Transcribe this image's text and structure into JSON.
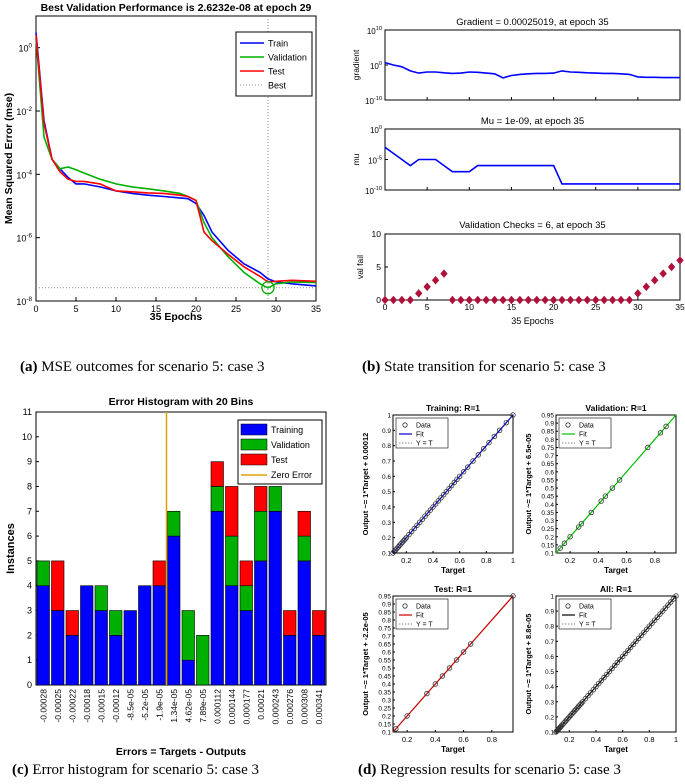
{
  "captions": [
    {
      "letter": "(a)",
      "text": "MSE outcomes for scenario 5: case 3"
    },
    {
      "letter": "(b)",
      "text": "State transition for scenario 5: case 3"
    },
    {
      "letter": "(c)",
      "text": "Error histogram for scenario 5: case 3"
    },
    {
      "letter": "(d)",
      "text": "Regression results for scenario 5: case 3"
    }
  ],
  "chart_data": [
    {
      "id": "performance",
      "type": "line",
      "title": "Best Validation Performance is 2.6232e-08 at epoch 29",
      "xlabel": "35 Epochs",
      "ylabel": "Mean Squared Error  (mse)",
      "y_scale": "log",
      "xlim": [
        0,
        35
      ],
      "ylim": [
        1e-08,
        10
      ],
      "x_ticks": [
        0,
        5,
        10,
        15,
        20,
        25,
        30,
        35
      ],
      "y_ticks": [
        {
          "value": 1,
          "label": "10",
          "exp": "0"
        },
        {
          "value": 0.01,
          "label": "10",
          "exp": "-2"
        },
        {
          "value": 0.0001,
          "label": "10",
          "exp": "-4"
        },
        {
          "value": 1e-06,
          "label": "10",
          "exp": "-6"
        },
        {
          "value": 1e-08,
          "label": "10",
          "exp": "-8"
        }
      ],
      "best_epoch": 29,
      "best_value": 2.6232e-08,
      "legend_position": "top-right",
      "series": [
        {
          "name": "Train",
          "color": "#0000ff",
          "x": [
            0,
            1,
            2,
            3,
            4,
            5,
            6,
            8,
            10,
            12,
            14,
            16,
            18,
            19,
            20,
            21,
            22,
            24,
            26,
            28,
            29,
            30,
            32,
            35
          ],
          "y": [
            3,
            0.005,
            0.0003,
            0.00015,
            8e-05,
            5e-05,
            5e-05,
            4e-05,
            3e-05,
            2.5e-05,
            2.2e-05,
            2e-05,
            1.8e-05,
            1.7e-05,
            1.2e-05,
            5e-06,
            1.5e-06,
            4e-07,
            1.5e-07,
            8e-08,
            5e-08,
            4e-08,
            3.5e-08,
            3e-08
          ]
        },
        {
          "name": "Validation",
          "color": "#00b000",
          "x": [
            0,
            1,
            2,
            3,
            4,
            5,
            6,
            8,
            10,
            12,
            14,
            16,
            18,
            19,
            20,
            21,
            22,
            24,
            26,
            28,
            29,
            30,
            32,
            35
          ],
          "y": [
            2,
            0.0015,
            0.0003,
            0.00015,
            0.00017,
            0.00014,
            0.00011,
            7e-05,
            5e-05,
            4e-05,
            3.5e-05,
            3e-05,
            2.5e-05,
            2e-05,
            1.5e-05,
            3e-06,
            1e-06,
            2.5e-07,
            8e-08,
            3.5e-08,
            2.6e-08,
            3.5e-08,
            4e-08,
            3.8e-08
          ]
        },
        {
          "name": "Test",
          "color": "#ff0000",
          "x": [
            0,
            1,
            2,
            3,
            4,
            5,
            6,
            8,
            10,
            12,
            14,
            16,
            18,
            19,
            20,
            21,
            22,
            24,
            26,
            28,
            29,
            30,
            32,
            35
          ],
          "y": [
            2.5,
            0.004,
            0.0003,
            0.00012,
            7e-05,
            6e-05,
            6e-05,
            5e-05,
            3e-05,
            2.8e-05,
            2.6e-05,
            2.5e-05,
            2.2e-05,
            2e-05,
            1.5e-05,
            1.5e-06,
            8e-07,
            3e-07,
            1.2e-07,
            6e-08,
            4e-08,
            4.2e-08,
            4.5e-08,
            4.2e-08
          ]
        },
        {
          "name": "Best",
          "color": "#999999",
          "style": "dotted"
        }
      ]
    },
    {
      "id": "gradient",
      "type": "line",
      "title": "Gradient = 0.00025019, at epoch 35",
      "ylabel": "gradient",
      "y_scale": "log",
      "xlim": [
        0,
        35
      ],
      "ylim": [
        1e-10,
        10000000000.0
      ],
      "y_ticks": [
        {
          "value": 10000000000.0,
          "label": "10",
          "exp": "10"
        },
        {
          "value": 1,
          "label": "10",
          "exp": "0"
        },
        {
          "value": 1e-10,
          "label": "10",
          "exp": "-10"
        }
      ],
      "x_ticks": [
        0,
        5,
        10,
        15,
        20,
        25,
        30,
        35
      ],
      "series": [
        {
          "color": "#0000ff",
          "x": [
            0,
            1,
            2,
            3,
            4,
            5,
            6,
            7,
            8,
            9,
            10,
            11,
            12,
            13,
            14,
            15,
            16,
            17,
            18,
            19,
            20,
            21,
            22,
            23,
            24,
            25,
            26,
            27,
            28,
            29,
            30,
            31,
            32,
            33,
            34,
            35
          ],
          "y": [
            5,
            1,
            0.3,
            0.02,
            0.005,
            0.01,
            0.01,
            0.006,
            0.004,
            0.005,
            0.01,
            0.008,
            0.005,
            0.003,
            0.0002,
            0.001,
            0.002,
            0.003,
            0.004,
            0.004,
            0.005,
            0.02,
            0.01,
            0.008,
            0.006,
            0.005,
            0.004,
            0.004,
            0.003,
            0.002,
            0.0004,
            0.0003,
            0.0003,
            0.00025,
            0.00025,
            0.00025
          ]
        }
      ]
    },
    {
      "id": "mu",
      "type": "line",
      "title": "Mu = 1e-09, at epoch 35",
      "ylabel": "mu",
      "y_scale": "log",
      "xlim": [
        0,
        35
      ],
      "ylim": [
        1e-10,
        1
      ],
      "y_ticks": [
        {
          "value": 1,
          "label": "10",
          "exp": "0"
        },
        {
          "value": 1e-05,
          "label": "10",
          "exp": "-5"
        },
        {
          "value": 1e-10,
          "label": "10",
          "exp": "-10"
        }
      ],
      "x_ticks": [
        0,
        5,
        10,
        15,
        20,
        25,
        30,
        35
      ],
      "series": [
        {
          "color": "#0000ff",
          "x": [
            0,
            1,
            2,
            3,
            4,
            5,
            6,
            7,
            8,
            9,
            10,
            11,
            12,
            13,
            14,
            15,
            16,
            17,
            18,
            19,
            20,
            21,
            22,
            23,
            24,
            25,
            26,
            27,
            28,
            29,
            30,
            31,
            32,
            33,
            34,
            35
          ],
          "y": [
            0.001,
            0.0001,
            1e-05,
            1e-06,
            1e-05,
            1e-05,
            1e-05,
            1e-06,
            1e-07,
            1e-07,
            1e-07,
            1e-06,
            1e-06,
            1e-06,
            1e-06,
            1e-06,
            1e-06,
            1e-06,
            1e-06,
            1e-06,
            1e-06,
            1e-09,
            1e-09,
            1e-09,
            1e-09,
            1e-09,
            1e-09,
            1e-09,
            1e-09,
            1e-09,
            1e-09,
            1e-09,
            1e-09,
            1e-09,
            1e-09,
            1e-09
          ]
        }
      ]
    },
    {
      "id": "valfail",
      "type": "scatter",
      "title": "Validation Checks = 6, at epoch 35",
      "xlabel": "35 Epochs",
      "ylabel": "val fail",
      "xlim": [
        0,
        35
      ],
      "ylim": [
        0,
        10
      ],
      "x_ticks": [
        0,
        5,
        10,
        15,
        20,
        25,
        30,
        35
      ],
      "y_ticks": [
        0,
        5,
        10
      ],
      "series": [
        {
          "color": "#b0103c",
          "x": [
            0,
            1,
            2,
            3,
            4,
            5,
            6,
            7,
            8,
            9,
            10,
            11,
            12,
            13,
            14,
            15,
            16,
            17,
            18,
            19,
            20,
            21,
            22,
            23,
            24,
            25,
            26,
            27,
            28,
            29,
            30,
            31,
            32,
            33,
            34,
            35
          ],
          "y": [
            0,
            0,
            0,
            0,
            1,
            2,
            3,
            4,
            0,
            0,
            0,
            0,
            0,
            0,
            0,
            0,
            0,
            0,
            0,
            0,
            0,
            0,
            0,
            0,
            0,
            0,
            0,
            0,
            0,
            0,
            1,
            2,
            3,
            4,
            5,
            6
          ]
        }
      ]
    },
    {
      "id": "histogram",
      "type": "bar",
      "title": "Error Histogram with 20 Bins",
      "xlabel": "Errors = Targets - Outputs",
      "ylabel": "Instances",
      "ylim": [
        0,
        11
      ],
      "y_ticks": [
        0,
        1,
        2,
        3,
        4,
        5,
        6,
        7,
        8,
        9,
        10,
        11
      ],
      "zero_error_bin": 9,
      "legend_position": "top-right",
      "categories": [
        "-0.00028",
        "-0.00025",
        "-0.00022",
        "-0.00018",
        "-0.00015",
        "-0.00012",
        "-8.5e-05",
        "-5.2e-05",
        "-1.9e-05",
        "1.34e-05",
        "4.62e-05",
        "7.89e-05",
        "0.000112",
        "0.000144",
        "0.000177",
        "0.00021",
        "0.000243",
        "0.000276",
        "0.000308",
        "0.000341"
      ],
      "series": [
        {
          "name": "Training",
          "color": "#0000ff",
          "values": [
            4,
            3,
            2,
            4,
            3,
            2,
            3,
            4,
            4,
            6,
            1,
            0,
            7,
            4,
            3,
            5,
            7,
            2,
            5,
            2
          ]
        },
        {
          "name": "Validation",
          "color": "#00b000",
          "values": [
            1,
            0,
            0,
            0,
            1,
            1,
            0,
            0,
            0,
            1,
            2,
            2,
            1,
            2,
            1,
            2,
            1,
            0,
            1,
            0
          ]
        },
        {
          "name": "Test",
          "color": "#ff0000",
          "values": [
            0,
            2,
            1,
            0,
            0,
            0,
            0,
            0,
            1,
            0,
            0,
            0,
            1,
            2,
            1,
            1,
            0,
            1,
            1,
            1
          ]
        },
        {
          "name": "Zero Error",
          "color": "#e0a000"
        }
      ]
    },
    {
      "id": "regression-training",
      "type": "scatter",
      "title": "Training: R=1",
      "xlabel": "Target",
      "ylabel": "Output ~= 1*Target + 0.00012",
      "xlim": [
        0.1,
        1
      ],
      "ylim": [
        0.1,
        1
      ],
      "x_ticks": [
        0.2,
        0.4,
        0.6,
        0.8,
        1
      ],
      "y_ticks": [
        0.1,
        0.2,
        0.3,
        0.4,
        0.5,
        0.6,
        0.7,
        0.8,
        0.9,
        1
      ],
      "fit_color": "#0000cc",
      "legend": [
        "Data",
        "Fit",
        "Y = T"
      ],
      "points": [
        0.1,
        0.11,
        0.12,
        0.13,
        0.14,
        0.15,
        0.16,
        0.17,
        0.18,
        0.19,
        0.2,
        0.22,
        0.24,
        0.26,
        0.28,
        0.3,
        0.32,
        0.34,
        0.36,
        0.38,
        0.4,
        0.42,
        0.44,
        0.46,
        0.48,
        0.5,
        0.52,
        0.54,
        0.56,
        0.58,
        0.6,
        0.63,
        0.66,
        0.7,
        0.74,
        0.78,
        0.82,
        0.86,
        0.9,
        0.95,
        1.0
      ]
    },
    {
      "id": "regression-validation",
      "type": "scatter",
      "title": "Validation: R=1",
      "xlabel": "Target",
      "ylabel": "Output ~= 1*Target + 6.5e-05",
      "xlim": [
        0.1,
        0.95
      ],
      "ylim": [
        0.1,
        0.95
      ],
      "x_ticks": [
        0.2,
        0.4,
        0.6,
        0.8
      ],
      "y_ticks": [
        0.1,
        0.15,
        0.2,
        0.25,
        0.3,
        0.35,
        0.4,
        0.45,
        0.5,
        0.55,
        0.6,
        0.65,
        0.7,
        0.75,
        0.8,
        0.85,
        0.9,
        0.95
      ],
      "fit_color": "#00c000",
      "legend": [
        "Data",
        "Fit",
        "Y = T"
      ],
      "points": [
        0.13,
        0.16,
        0.2,
        0.26,
        0.28,
        0.35,
        0.42,
        0.45,
        0.5,
        0.55,
        0.75,
        0.84,
        0.88
      ]
    },
    {
      "id": "regression-test",
      "type": "scatter",
      "title": "Test: R=1",
      "xlabel": "Target",
      "ylabel": "Output ~= 1*Target + -2.2e-05",
      "xlim": [
        0.1,
        0.95
      ],
      "ylim": [
        0.1,
        0.95
      ],
      "x_ticks": [
        0.2,
        0.4,
        0.6,
        0.8
      ],
      "y_ticks": [
        0.1,
        0.15,
        0.2,
        0.25,
        0.3,
        0.35,
        0.4,
        0.45,
        0.5,
        0.55,
        0.6,
        0.65,
        0.7,
        0.75,
        0.8,
        0.85,
        0.9,
        0.95
      ],
      "fit_color": "#cc0000",
      "legend": [
        "Data",
        "Fit",
        "Y = T"
      ],
      "points": [
        0.12,
        0.2,
        0.34,
        0.4,
        0.45,
        0.5,
        0.55,
        0.6,
        0.65,
        0.95
      ]
    },
    {
      "id": "regression-all",
      "type": "scatter",
      "title": "All: R=1",
      "xlabel": "Target",
      "ylabel": "Output ~= 1*Target + 8.8e-05",
      "xlim": [
        0.1,
        1
      ],
      "ylim": [
        0.1,
        1
      ],
      "x_ticks": [
        0.2,
        0.4,
        0.6,
        0.8,
        1
      ],
      "y_ticks": [
        0.1,
        0.2,
        0.3,
        0.4,
        0.5,
        0.6,
        0.7,
        0.8,
        0.9,
        1
      ],
      "fit_color": "#000000",
      "legend": [
        "Data",
        "Fit",
        "Y = T"
      ],
      "points": [
        0.1,
        0.105,
        0.11,
        0.115,
        0.12,
        0.125,
        0.13,
        0.135,
        0.14,
        0.15,
        0.16,
        0.17,
        0.18,
        0.19,
        0.2,
        0.21,
        0.22,
        0.23,
        0.24,
        0.25,
        0.26,
        0.27,
        0.28,
        0.29,
        0.3,
        0.32,
        0.34,
        0.36,
        0.38,
        0.4,
        0.42,
        0.44,
        0.46,
        0.48,
        0.5,
        0.52,
        0.54,
        0.56,
        0.58,
        0.6,
        0.62,
        0.64,
        0.66,
        0.68,
        0.7,
        0.72,
        0.74,
        0.76,
        0.78,
        0.8,
        0.82,
        0.84,
        0.86,
        0.88,
        0.9,
        0.92,
        0.94,
        0.96,
        0.98,
        1.0
      ]
    }
  ]
}
